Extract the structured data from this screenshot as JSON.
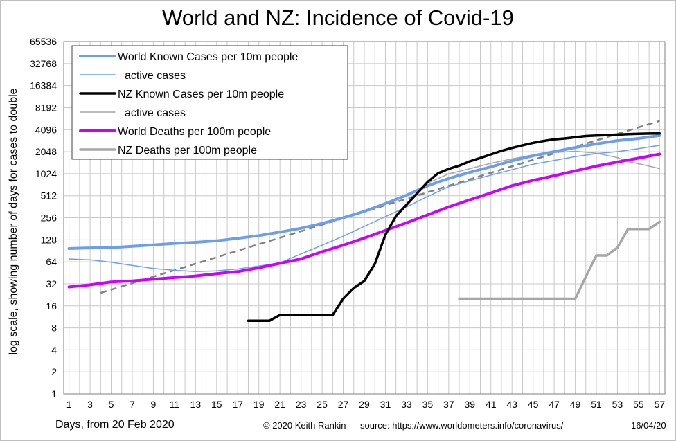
{
  "title": "World and NZ: Incidence of Covid-19",
  "footer": {
    "xlabel": "Days, from 20 Feb 2020",
    "credit": "© 2020  Keith Rankin",
    "source": "source:  https://www.worldometers.info/coronavirus/",
    "date": "16/04/20"
  },
  "chart_data": {
    "type": "line",
    "title": "World and NZ: Incidence of Covid-19",
    "xlabel": "Days, from 20 Feb 2020",
    "ylabel": "log scale, showing number of days for cases to double",
    "y_scale": "log2",
    "ylim": [
      1,
      65536
    ],
    "xlim": [
      1,
      57
    ],
    "y_ticks": [
      1,
      2,
      4,
      8,
      16,
      32,
      64,
      128,
      256,
      512,
      1024,
      2048,
      4096,
      8192,
      16384,
      32768,
      65536
    ],
    "x_ticks": [
      1,
      3,
      5,
      7,
      9,
      11,
      13,
      15,
      17,
      19,
      21,
      23,
      25,
      27,
      29,
      31,
      33,
      35,
      37,
      39,
      41,
      43,
      45,
      47,
      49,
      51,
      53,
      55,
      57
    ],
    "grid": true,
    "legend_position": "top-left",
    "series": [
      {
        "name": "World Known Cases per 10m people",
        "color": "#6d9eeb",
        "width": 4,
        "x": [
          1,
          3,
          5,
          7,
          9,
          11,
          13,
          15,
          17,
          19,
          21,
          23,
          25,
          27,
          29,
          31,
          33,
          35,
          37,
          39,
          41,
          43,
          45,
          47,
          49,
          51,
          53,
          55,
          57
        ],
        "y": [
          97,
          99,
          100,
          104,
          109,
          114,
          118,
          124,
          134,
          146,
          163,
          184,
          214,
          256,
          313,
          400,
          520,
          700,
          880,
          1070,
          1270,
          1530,
          1800,
          2050,
          2330,
          2620,
          2900,
          3100,
          3400
        ]
      },
      {
        "name": "active cases",
        "color": "#6d9eeb",
        "width": 1.5,
        "x": [
          1,
          3,
          5,
          7,
          9,
          11,
          13,
          15,
          17,
          19,
          21,
          23,
          25,
          27,
          29,
          31,
          33,
          35,
          37,
          39,
          41,
          43,
          45,
          47,
          49,
          51,
          53,
          55,
          57
        ],
        "y": [
          70,
          68,
          63,
          57,
          52,
          49,
          47,
          48,
          51,
          56,
          62,
          82,
          108,
          143,
          195,
          265,
          360,
          500,
          680,
          820,
          980,
          1160,
          1380,
          1550,
          1750,
          1930,
          2050,
          2250,
          2500
        ]
      },
      {
        "name": "NZ Known Cases per 10m people",
        "color": "#000000",
        "width": 3.5,
        "x": [
          18,
          19,
          20,
          21,
          22,
          23,
          24,
          25,
          26,
          27,
          28,
          29,
          30,
          31,
          32,
          33,
          34,
          35,
          36,
          37,
          38,
          39,
          40,
          41,
          42,
          43,
          44,
          45,
          46,
          47,
          48,
          49,
          50,
          51,
          52,
          53,
          54,
          55,
          56,
          57
        ],
        "y": [
          10,
          10,
          10,
          12,
          12,
          12,
          12,
          12,
          12,
          20,
          28,
          35,
          60,
          150,
          270,
          385,
          550,
          790,
          1040,
          1190,
          1320,
          1510,
          1680,
          1880,
          2100,
          2300,
          2500,
          2700,
          2870,
          3020,
          3100,
          3220,
          3350,
          3400,
          3450,
          3500,
          3550,
          3600,
          3620,
          3640
        ]
      },
      {
        "name": "active cases",
        "color": "#a6a6a6",
        "width": 1.5,
        "x": [
          33,
          35,
          37,
          39,
          41,
          43,
          45,
          47,
          49,
          51,
          53,
          54,
          55,
          56,
          57
        ],
        "y": [
          380,
          760,
          1020,
          1200,
          1420,
          1630,
          1850,
          2000,
          2080,
          1950,
          1700,
          1500,
          1400,
          1300,
          1200
        ]
      },
      {
        "name": "World Deaths per 100m people",
        "color": "#cc00ff",
        "width": 4,
        "x": [
          1,
          3,
          5,
          7,
          9,
          11,
          13,
          15,
          17,
          19,
          21,
          23,
          25,
          27,
          29,
          31,
          33,
          35,
          37,
          39,
          41,
          43,
          45,
          47,
          49,
          51,
          53,
          55,
          57
        ],
        "y": [
          29,
          31,
          34,
          35,
          37,
          39,
          41,
          44,
          47,
          53,
          61,
          70,
          88,
          108,
          135,
          172,
          218,
          280,
          360,
          450,
          560,
          700,
          830,
          960,
          1120,
          1300,
          1480,
          1670,
          1900
        ]
      },
      {
        "name": "NZ Deaths per 100m people",
        "color": "#a6a6a6",
        "width": 3.5,
        "x": [
          38,
          39,
          40,
          41,
          42,
          43,
          44,
          45,
          46,
          47,
          48,
          49,
          50,
          51,
          52,
          53,
          54,
          55,
          56,
          57
        ],
        "y": [
          20,
          20,
          20,
          20,
          20,
          20,
          20,
          20,
          20,
          20,
          20,
          20,
          40,
          78,
          78,
          100,
          180,
          180,
          180,
          225
        ]
      }
    ],
    "trend_line": {
      "color": "#808080",
      "style": "dashed",
      "x": [
        4,
        57
      ],
      "y": [
        24,
        5400
      ]
    }
  }
}
